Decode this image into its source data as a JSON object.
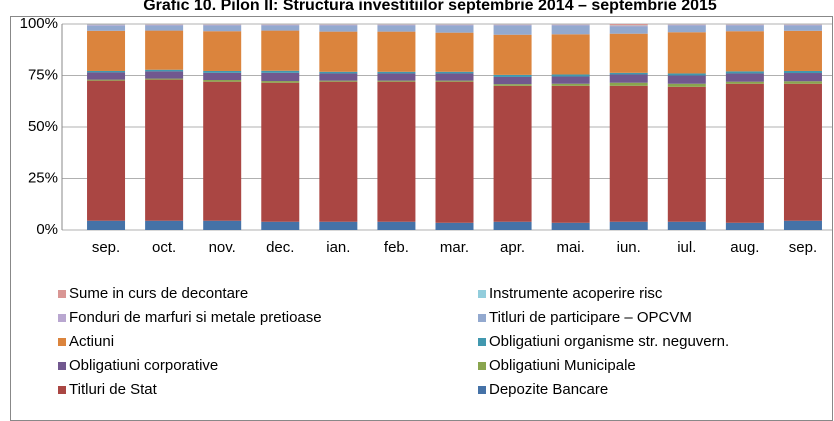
{
  "chart_data": {
    "type": "stacked_bar",
    "title": "Grafic 10.  Pilon II: Structura investitiilor septembrie 2014 – septembrie 2015",
    "categories": [
      "sep.",
      "oct.",
      "nov.",
      "dec.",
      "ian.",
      "feb.",
      "mar.",
      "apr.",
      "mai.",
      "iun.",
      "iul.",
      "aug.",
      "sep."
    ],
    "ylim": [
      0,
      100
    ],
    "yticks": [
      {
        "value": 0,
        "label": "0%"
      },
      {
        "value": 25,
        "label": "25%"
      },
      {
        "value": 50,
        "label": "50%"
      },
      {
        "value": 75,
        "label": "75%"
      },
      {
        "value": 100,
        "label": "100%"
      }
    ],
    "grid": true,
    "series": [
      {
        "name": "Depozite Bancare",
        "color": "#4572a7",
        "values": [
          4.5,
          4.5,
          4.5,
          4,
          4,
          4,
          3.5,
          4,
          3.5,
          4,
          4,
          3.5,
          4.5
        ]
      },
      {
        "name": "Titluri de Stat",
        "color": "#aa4643",
        "values": [
          68,
          68.5,
          67.5,
          67.5,
          68,
          68,
          68.5,
          66,
          66.5,
          66,
          65.5,
          67.5,
          66.5
        ]
      },
      {
        "name": "Obligatiuni Municipale",
        "color": "#89a54e",
        "values": [
          0.5,
          0.5,
          0.8,
          0.8,
          0.5,
          0.5,
          0.5,
          0.8,
          1,
          1.5,
          1.5,
          1,
          1.2
        ]
      },
      {
        "name": "Obligatiuni corporative",
        "color": "#71588f",
        "values": [
          3.5,
          3.5,
          3.5,
          4,
          3.5,
          3.5,
          3.5,
          3.5,
          3.5,
          4,
          4,
          4,
          4
        ]
      },
      {
        "name": "Obligatiuni organisme str. neguvern.",
        "color": "#4198af",
        "values": [
          0.7,
          0.8,
          0.9,
          1,
          0.8,
          0.8,
          0.8,
          1,
          1,
          0.8,
          1,
          1,
          1
        ]
      },
      {
        "name": "Actiuni",
        "color": "#db843d",
        "values": [
          19.5,
          19,
          19.3,
          19.5,
          19.5,
          19.5,
          19,
          19.5,
          19.5,
          19,
          20,
          19.5,
          19.5
        ]
      },
      {
        "name": "Titluri de participare – OPCVM",
        "color": "#93a9cf",
        "values": [
          2.5,
          2.5,
          2.8,
          2.5,
          3,
          3,
          3.5,
          4.5,
          4.3,
          3.5,
          3.3,
          2.8,
          2.6
        ]
      },
      {
        "name": "Fonduri de marfuri si metale pretioase",
        "color": "#b9a7d0",
        "values": [
          0.3,
          0.3,
          0.3,
          0.3,
          0.3,
          0.3,
          0.3,
          0.3,
          0.3,
          0.3,
          0.3,
          0.3,
          0.3
        ]
      },
      {
        "name": "Instrumente acoperire risc",
        "color": "#92cddc",
        "values": [
          0.3,
          0.2,
          0.2,
          0.2,
          0.2,
          0.2,
          0.2,
          0.2,
          0.2,
          0.2,
          0.2,
          0.2,
          0.2
        ]
      },
      {
        "name": "Sume in curs de decontare",
        "color": "#d99694",
        "values": [
          0.2,
          0.2,
          0.2,
          0.2,
          0.2,
          0.2,
          0.2,
          0.2,
          0.2,
          0.7,
          0.2,
          0.2,
          0.2
        ]
      }
    ]
  }
}
